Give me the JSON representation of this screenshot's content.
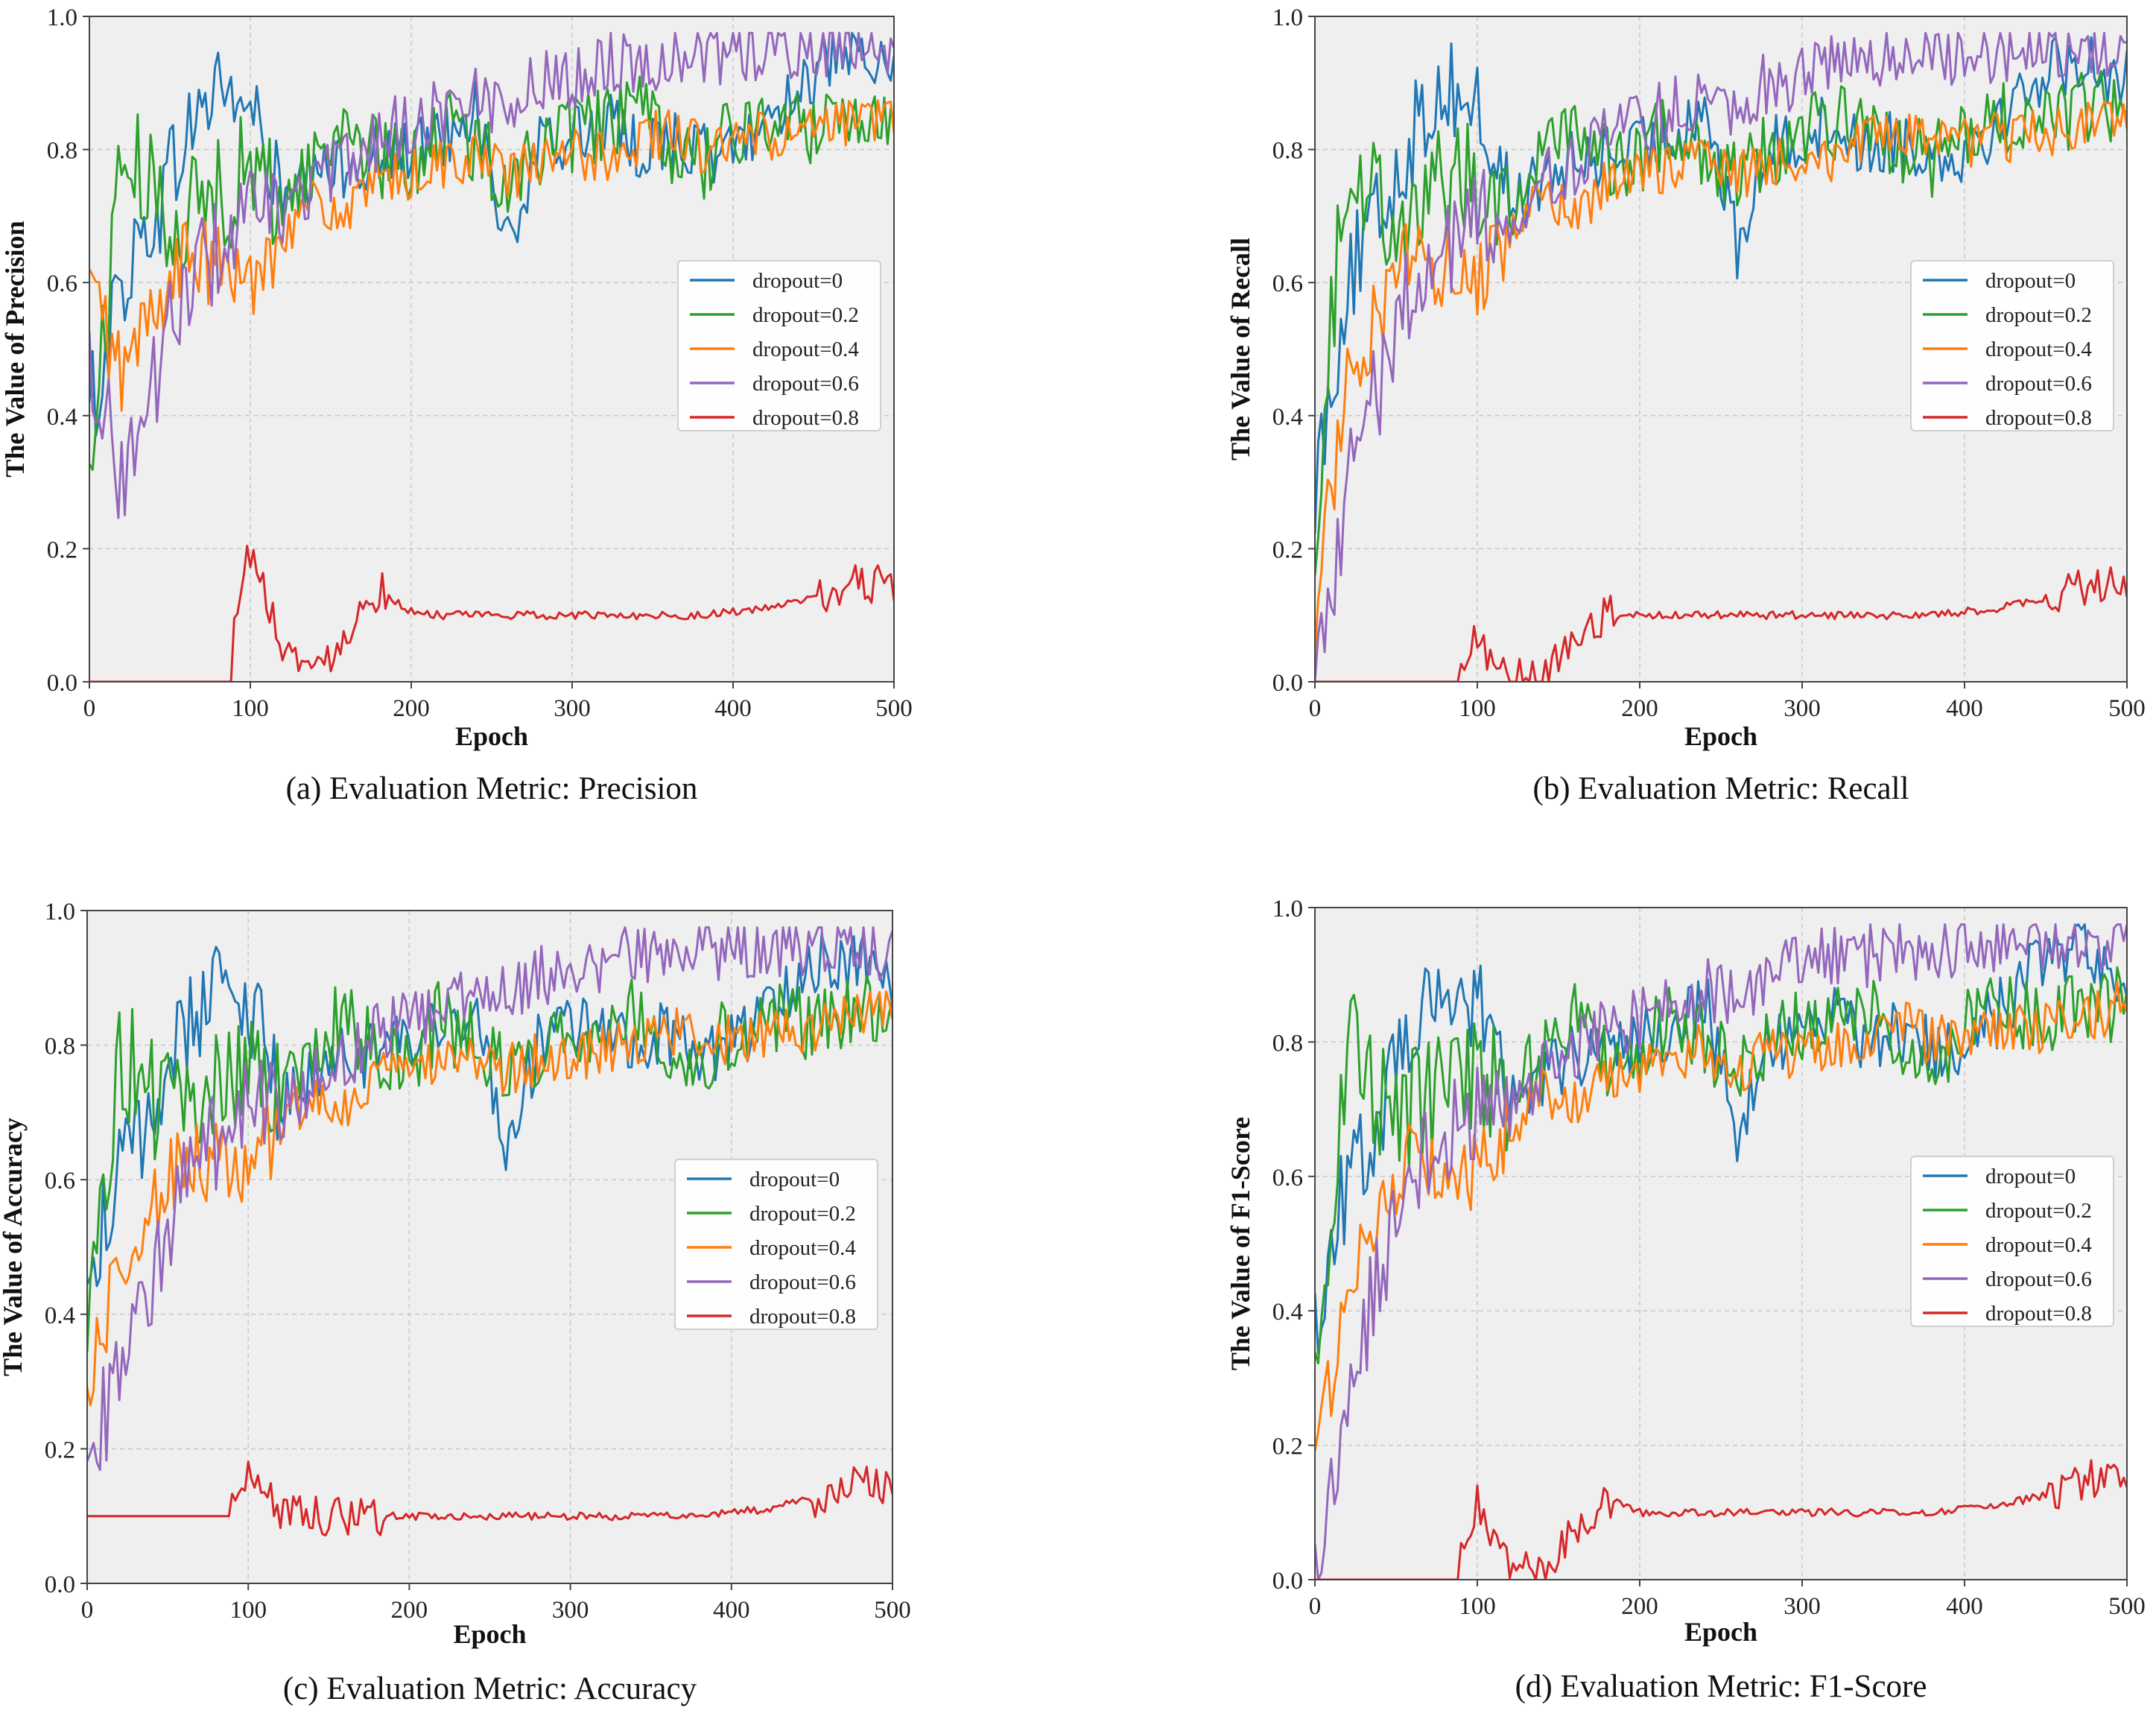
{
  "figure": {
    "series_names": [
      "dropout=0",
      "dropout=0.2",
      "dropout=0.4",
      "dropout=0.6",
      "dropout=0.8"
    ],
    "series_colors": [
      "#1f77b4",
      "#2ca02c",
      "#ff7f0e",
      "#9467bd",
      "#d62728"
    ]
  },
  "chart_data": [
    {
      "type": "line",
      "caption": "(a) Evaluation Metric: Precision",
      "xlabel": "Epoch",
      "ylabel": "The Value of Precision",
      "xlim": [
        0,
        500
      ],
      "ylim": [
        0.0,
        1.0
      ],
      "xticks": [
        0,
        100,
        200,
        300,
        400,
        500
      ],
      "yticks": [
        0.0,
        0.2,
        0.4,
        0.6,
        0.8,
        1.0
      ],
      "ytick_labels": [
        "0.0",
        "0.2",
        "0.4",
        "0.6",
        "0.8",
        "1.0"
      ],
      "grid": true,
      "legend": "center-right",
      "x": [
        0,
        20,
        40,
        60,
        80,
        100,
        120,
        140,
        160,
        180,
        200,
        220,
        240,
        260,
        280,
        300,
        320,
        340,
        360,
        380,
        400,
        420,
        440,
        460,
        480,
        500
      ],
      "series": [
        {
          "name": "dropout=0",
          "values": [
            0.4,
            0.6,
            0.7,
            0.82,
            0.9,
            0.86,
            0.72,
            0.75,
            0.78,
            0.79,
            0.8,
            0.82,
            0.87,
            0.65,
            0.8,
            0.82,
            0.84,
            0.8,
            0.82,
            0.79,
            0.8,
            0.84,
            0.9,
            0.93,
            0.93,
            0.9
          ]
        },
        {
          "name": "dropout=0.2",
          "values": [
            0.3,
            0.8,
            0.72,
            0.7,
            0.74,
            0.76,
            0.72,
            0.78,
            0.85,
            0.78,
            0.78,
            0.84,
            0.8,
            0.76,
            0.8,
            0.82,
            0.84,
            0.86,
            0.8,
            0.78,
            0.82,
            0.85,
            0.83,
            0.85,
            0.86,
            0.85
          ]
        },
        {
          "name": "dropout=0.4",
          "values": [
            0.6,
            0.46,
            0.56,
            0.64,
            0.62,
            0.6,
            0.68,
            0.72,
            0.7,
            0.75,
            0.76,
            0.78,
            0.79,
            0.76,
            0.78,
            0.79,
            0.79,
            0.81,
            0.83,
            0.8,
            0.81,
            0.82,
            0.82,
            0.83,
            0.84,
            0.86
          ]
        },
        {
          "name": "dropout=0.6",
          "values": [
            0.5,
            0.3,
            0.45,
            0.6,
            0.65,
            0.7,
            0.7,
            0.75,
            0.78,
            0.82,
            0.84,
            0.86,
            0.88,
            0.87,
            0.9,
            0.91,
            0.93,
            0.93,
            0.94,
            0.94,
            0.95,
            0.95,
            0.95,
            0.96,
            0.95,
            0.94
          ]
        },
        {
          "name": "dropout=0.8",
          "values": [
            0.0,
            0.0,
            0.0,
            0.0,
            0.0,
            0.2,
            0.06,
            0.01,
            0.08,
            0.14,
            0.105,
            0.1,
            0.1,
            0.1,
            0.1,
            0.1,
            0.1,
            0.1,
            0.1,
            0.1,
            0.105,
            0.11,
            0.12,
            0.13,
            0.15,
            0.14
          ]
        }
      ]
    },
    {
      "type": "line",
      "caption": "(b) Evaluation Metric: Recall",
      "xlabel": "Epoch",
      "ylabel": "The Value of Recall",
      "xlim": [
        0,
        500
      ],
      "ylim": [
        0.0,
        1.0
      ],
      "xticks": [
        0,
        100,
        200,
        300,
        400,
        500
      ],
      "yticks": [
        0.0,
        0.2,
        0.4,
        0.6,
        0.8,
        1.0
      ],
      "ytick_labels": [
        "0.0",
        "0.2",
        "0.4",
        "0.6",
        "0.8",
        "1.0"
      ],
      "grid": true,
      "legend": "center-right",
      "x": [
        0,
        20,
        40,
        60,
        80,
        100,
        120,
        140,
        160,
        180,
        200,
        220,
        240,
        260,
        280,
        300,
        320,
        340,
        360,
        380,
        400,
        420,
        440,
        460,
        480,
        500
      ],
      "series": [
        {
          "name": "dropout=0",
          "values": [
            0.3,
            0.6,
            0.7,
            0.82,
            0.9,
            0.86,
            0.72,
            0.75,
            0.78,
            0.79,
            0.8,
            0.82,
            0.87,
            0.65,
            0.8,
            0.82,
            0.84,
            0.8,
            0.82,
            0.79,
            0.8,
            0.84,
            0.9,
            0.93,
            0.93,
            0.9
          ]
        },
        {
          "name": "dropout=0.2",
          "values": [
            0.25,
            0.8,
            0.72,
            0.7,
            0.74,
            0.76,
            0.72,
            0.78,
            0.85,
            0.78,
            0.78,
            0.84,
            0.8,
            0.76,
            0.8,
            0.82,
            0.84,
            0.86,
            0.8,
            0.78,
            0.82,
            0.85,
            0.83,
            0.85,
            0.86,
            0.85
          ]
        },
        {
          "name": "dropout=0.4",
          "values": [
            0.1,
            0.46,
            0.56,
            0.64,
            0.62,
            0.6,
            0.68,
            0.72,
            0.7,
            0.75,
            0.76,
            0.78,
            0.79,
            0.76,
            0.78,
            0.79,
            0.79,
            0.81,
            0.83,
            0.8,
            0.81,
            0.82,
            0.82,
            0.83,
            0.84,
            0.86
          ]
        },
        {
          "name": "dropout=0.6",
          "values": [
            0.0,
            0.3,
            0.45,
            0.6,
            0.65,
            0.7,
            0.7,
            0.75,
            0.78,
            0.82,
            0.84,
            0.86,
            0.88,
            0.87,
            0.9,
            0.91,
            0.93,
            0.93,
            0.94,
            0.94,
            0.95,
            0.95,
            0.95,
            0.96,
            0.95,
            0.94
          ]
        },
        {
          "name": "dropout=0.8",
          "values": [
            0.0,
            0.0,
            0.0,
            0.0,
            0.0,
            0.06,
            0.02,
            0.0,
            0.08,
            0.1,
            0.1,
            0.1,
            0.1,
            0.1,
            0.1,
            0.1,
            0.1,
            0.1,
            0.1,
            0.1,
            0.105,
            0.11,
            0.12,
            0.13,
            0.15,
            0.14
          ]
        }
      ]
    },
    {
      "type": "line",
      "caption": "(c) Evaluation Metric: Accuracy",
      "xlabel": "Epoch",
      "ylabel": "The Value of Accuracy",
      "xlim": [
        0,
        500
      ],
      "ylim": [
        0.0,
        1.0
      ],
      "xticks": [
        0,
        100,
        200,
        300,
        400,
        500
      ],
      "yticks": [
        0.0,
        0.2,
        0.4,
        0.6,
        0.8,
        1.0
      ],
      "ytick_labels": [
        "0.0",
        "0.2",
        "0.4",
        "0.6",
        "0.8",
        "1.0"
      ],
      "grid": true,
      "legend": "center-right",
      "x": [
        0,
        20,
        40,
        60,
        80,
        100,
        120,
        140,
        160,
        180,
        200,
        220,
        240,
        260,
        280,
        300,
        320,
        340,
        360,
        380,
        400,
        420,
        440,
        460,
        480,
        500
      ],
      "series": [
        {
          "name": "dropout=0",
          "values": [
            0.46,
            0.6,
            0.7,
            0.82,
            0.9,
            0.86,
            0.72,
            0.75,
            0.78,
            0.79,
            0.8,
            0.82,
            0.87,
            0.65,
            0.8,
            0.82,
            0.84,
            0.8,
            0.82,
            0.79,
            0.8,
            0.84,
            0.9,
            0.93,
            0.93,
            0.9
          ]
        },
        {
          "name": "dropout=0.2",
          "values": [
            0.36,
            0.8,
            0.72,
            0.7,
            0.74,
            0.76,
            0.72,
            0.78,
            0.85,
            0.78,
            0.78,
            0.84,
            0.8,
            0.76,
            0.8,
            0.82,
            0.84,
            0.86,
            0.8,
            0.78,
            0.82,
            0.85,
            0.83,
            0.85,
            0.86,
            0.85
          ]
        },
        {
          "name": "dropout=0.4",
          "values": [
            0.3,
            0.46,
            0.56,
            0.64,
            0.62,
            0.6,
            0.68,
            0.72,
            0.7,
            0.75,
            0.76,
            0.78,
            0.79,
            0.76,
            0.78,
            0.79,
            0.79,
            0.81,
            0.83,
            0.8,
            0.81,
            0.82,
            0.82,
            0.83,
            0.84,
            0.86
          ]
        },
        {
          "name": "dropout=0.6",
          "values": [
            0.19,
            0.3,
            0.45,
            0.6,
            0.65,
            0.7,
            0.7,
            0.75,
            0.78,
            0.82,
            0.84,
            0.86,
            0.88,
            0.87,
            0.9,
            0.91,
            0.93,
            0.93,
            0.94,
            0.94,
            0.95,
            0.95,
            0.95,
            0.96,
            0.95,
            0.94
          ]
        },
        {
          "name": "dropout=0.8",
          "values": [
            0.1,
            0.1,
            0.1,
            0.1,
            0.1,
            0.17,
            0.11,
            0.1,
            0.1,
            0.1,
            0.1,
            0.1,
            0.1,
            0.1,
            0.1,
            0.1,
            0.1,
            0.1,
            0.1,
            0.1,
            0.105,
            0.11,
            0.12,
            0.13,
            0.15,
            0.14
          ]
        }
      ]
    },
    {
      "type": "line",
      "caption": "(d) Evaluation Metric: F1-Score",
      "xlabel": "Epoch",
      "ylabel": "The Value of F1-Score",
      "xlim": [
        0,
        500
      ],
      "ylim": [
        0.0,
        1.0
      ],
      "xticks": [
        0,
        100,
        200,
        300,
        400,
        500
      ],
      "yticks": [
        0.0,
        0.2,
        0.4,
        0.6,
        0.8,
        1.0
      ],
      "ytick_labels": [
        "0.0",
        "0.2",
        "0.4",
        "0.6",
        "0.8",
        "1.0"
      ],
      "grid": true,
      "legend": "center-right",
      "x": [
        0,
        20,
        40,
        60,
        80,
        100,
        120,
        140,
        160,
        180,
        200,
        220,
        240,
        260,
        280,
        300,
        320,
        340,
        360,
        380,
        400,
        420,
        440,
        460,
        480,
        500
      ],
      "series": [
        {
          "name": "dropout=0",
          "values": [
            0.38,
            0.6,
            0.7,
            0.82,
            0.9,
            0.86,
            0.72,
            0.75,
            0.78,
            0.79,
            0.8,
            0.82,
            0.87,
            0.65,
            0.8,
            0.82,
            0.84,
            0.8,
            0.82,
            0.79,
            0.8,
            0.84,
            0.9,
            0.93,
            0.93,
            0.9
          ]
        },
        {
          "name": "dropout=0.2",
          "values": [
            0.28,
            0.8,
            0.72,
            0.7,
            0.74,
            0.76,
            0.72,
            0.78,
            0.85,
            0.78,
            0.78,
            0.84,
            0.8,
            0.76,
            0.8,
            0.82,
            0.84,
            0.86,
            0.8,
            0.78,
            0.82,
            0.85,
            0.83,
            0.85,
            0.86,
            0.85
          ]
        },
        {
          "name": "dropout=0.4",
          "values": [
            0.15,
            0.46,
            0.56,
            0.64,
            0.62,
            0.6,
            0.68,
            0.72,
            0.7,
            0.75,
            0.76,
            0.78,
            0.79,
            0.76,
            0.78,
            0.79,
            0.79,
            0.81,
            0.83,
            0.8,
            0.81,
            0.82,
            0.82,
            0.83,
            0.84,
            0.86
          ]
        },
        {
          "name": "dropout=0.6",
          "values": [
            0.0,
            0.3,
            0.45,
            0.6,
            0.65,
            0.7,
            0.7,
            0.75,
            0.78,
            0.82,
            0.84,
            0.86,
            0.88,
            0.87,
            0.9,
            0.91,
            0.93,
            0.93,
            0.94,
            0.94,
            0.95,
            0.95,
            0.95,
            0.96,
            0.95,
            0.94
          ]
        },
        {
          "name": "dropout=0.8",
          "values": [
            0.0,
            0.0,
            0.0,
            0.0,
            0.0,
            0.11,
            0.03,
            0.0,
            0.08,
            0.12,
            0.1,
            0.1,
            0.1,
            0.1,
            0.1,
            0.1,
            0.1,
            0.1,
            0.1,
            0.1,
            0.105,
            0.11,
            0.12,
            0.13,
            0.15,
            0.14
          ]
        }
      ]
    }
  ]
}
